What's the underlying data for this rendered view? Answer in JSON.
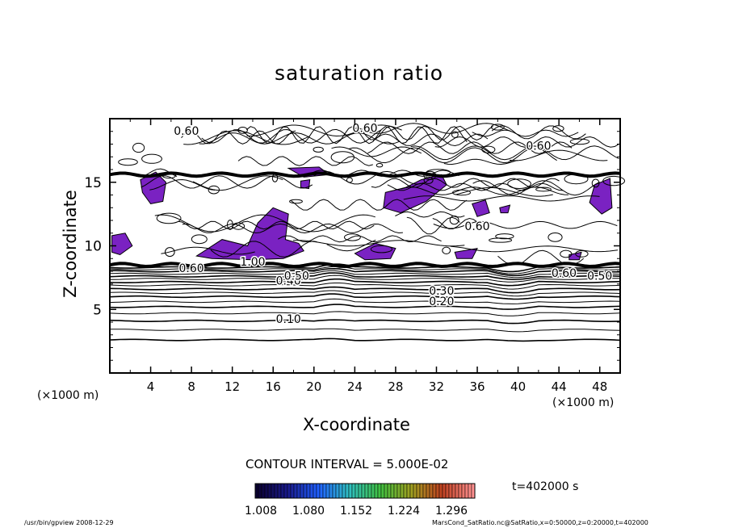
{
  "chart_data": {
    "type": "contour",
    "title": "saturation ratio",
    "xlabel": "X-coordinate",
    "ylabel": "Z-coordinate",
    "x_unit_labels": [
      "(×1000 m)",
      "(×1000 m)"
    ],
    "xlim": [
      0,
      50
    ],
    "ylim": [
      0,
      20
    ],
    "x_ticks": [
      4,
      8,
      12,
      16,
      20,
      24,
      28,
      32,
      36,
      40,
      44,
      48
    ],
    "y_ticks": [
      5,
      10,
      15
    ],
    "contour_interval_label": "CONTOUR INTERVAL = 5.000E-02",
    "contour_labels": [
      {
        "text": "0.10",
        "x": 17.5,
        "z": 4.2
      },
      {
        "text": "0.20",
        "x": 32.5,
        "z": 5.6
      },
      {
        "text": "0.30",
        "x": 32.5,
        "z": 6.4
      },
      {
        "text": "0.40",
        "x": 17.5,
        "z": 7.2
      },
      {
        "text": "0.50",
        "x": 18.3,
        "z": 7.6
      },
      {
        "text": "0.60",
        "x": 8.0,
        "z": 8.2
      },
      {
        "text": "1.00",
        "x": 14.0,
        "z": 8.7
      },
      {
        "text": "0.50",
        "x": 48.0,
        "z": 7.6
      },
      {
        "text": "0.60",
        "x": 44.5,
        "z": 7.8
      },
      {
        "text": "0.60",
        "x": 36.0,
        "z": 11.5
      },
      {
        "text": "0.60",
        "x": 42.0,
        "z": 17.8
      },
      {
        "text": "0.60",
        "x": 7.5,
        "z": 19.0
      },
      {
        "text": "0.60",
        "x": 25.0,
        "z": 19.2
      }
    ],
    "colorbar": {
      "ticks": [
        "1.008",
        "1.080",
        "1.152",
        "1.224",
        "1.296"
      ],
      "colors": [
        "#0a0030",
        "#1a1a8c",
        "#2060ff",
        "#30c0c0",
        "#40c040",
        "#a0a020",
        "#c04020",
        "#ff9090"
      ]
    },
    "fill_color": "#7a22c2",
    "time_label": "t=402000 s",
    "footer_left": "/usr/bin/gpview   2008-12-29",
    "footer_right": "MarsCond_SatRatio.nc@SatRatio,x=0:50000,z=0:20000,t=402000"
  }
}
